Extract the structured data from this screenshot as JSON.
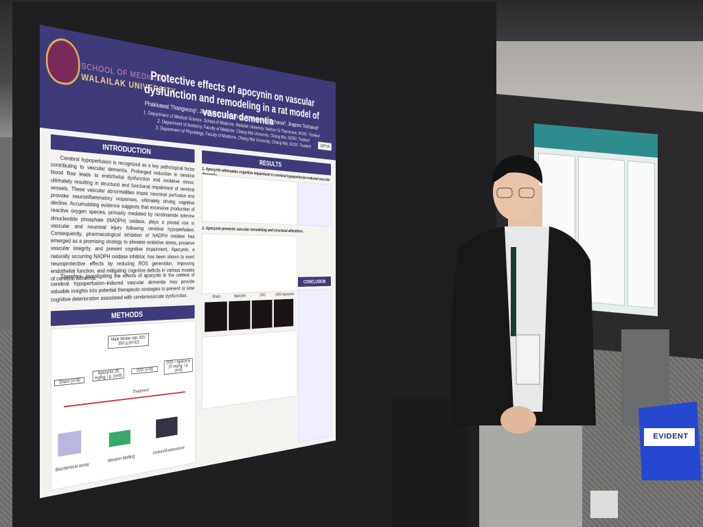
{
  "poster": {
    "institution": {
      "line1": "SCHOOL OF MEDICINE",
      "line2": "WALAILAK UNIVERSITY"
    },
    "title": "Protective effects of apocynin on vascular dysfunction and remodeling in a rat model of vascular dementia",
    "authors": "Phakkawat Thangwong¹, Jirakhamon Senghing², Chainarong Tocharus³, Jiraporn Tocharus³",
    "affiliations": [
      "1. Department of Medical Science, School of Medicine, Walailak University, Nakhon Si Thammarat, 80160, Thailand",
      "2. Department of Anatomy, Faculty of Medicine, Chiang Mai University, Chiang Mai, 50200, Thailand",
      "3. Department of Physiology, Faculty of Medicine, Chiang Mai University, Chiang Mai, 50200, Thailand"
    ],
    "poster_id": "LBP135",
    "introduction": {
      "heading": "INTRODUCTION",
      "paragraphs": [
        "Cerebral hypoperfusion is recognized as a key pathological factor contributing to vascular dementia. Prolonged reduction in cerebral blood flow leads to endothelial dysfunction and oxidative stress, ultimately resulting in structural and functional impairment of cerebral vessels. These vascular abnormalities impair neuronal perfusion and provoke neuroinflammatory responses, ultimately driving cognitive decline. Accumulating evidence suggests that excessive production of reactive oxygen species, primarily mediated by nicotinamide adenine dinucleotide phosphate (NADPH) oxidase, plays a pivotal role in vascular and neuronal injury following cerebral hypoperfusion. Consequently, pharmacological inhibition of NADPH oxidase has emerged as a promising strategy to alleviate oxidative stress, preserve vascular integrity, and prevent cognitive impairment. Apocynin, a naturally occurring NADPH oxidase inhibitor, has been shown to exert neuroprotective effects by reducing ROS generation, improving endothelial function, and mitigating cognitive deficits in various models of cerebral ischemia.",
        "Therefore, investigating the effects of apocynin in the context of cerebral hypoperfusion–induced vascular dementia may provide valuable insights into potential therapeutic strategies to prevent or slow cognitive deterioration associated with cerebrovascular dysfunction."
      ]
    },
    "methods": {
      "heading": "METHODS",
      "animals": "Male Wistar rats 300-350 g (n=32)",
      "groups": [
        "Sham (n=8)",
        "Apocynin 25 mg/kg, i.p. (n=8)",
        "2VO (n=8)",
        "2VO + Apocynin 25 mg/kg, i.p. (n=8)"
      ],
      "treatment": "Treatment",
      "assays": [
        "Biochemical assay",
        "Western blotting",
        "Immunofluorescence"
      ]
    },
    "results": {
      "heading": "RESULTS",
      "subheadings": [
        "1. Apocynin attenuates cognitive impairment in cerebral hypoperfusion-induced vascular dementia",
        "2. Apocynin prevents vascular remodeling and structural alterations."
      ],
      "panel_labels": [
        "Sham",
        "Apocynin",
        "2VO",
        "2VO+Apocynin"
      ]
    },
    "conclusion": {
      "heading": "CONCLUSION"
    }
  },
  "bag": {
    "brand": "EVIDENT"
  }
}
